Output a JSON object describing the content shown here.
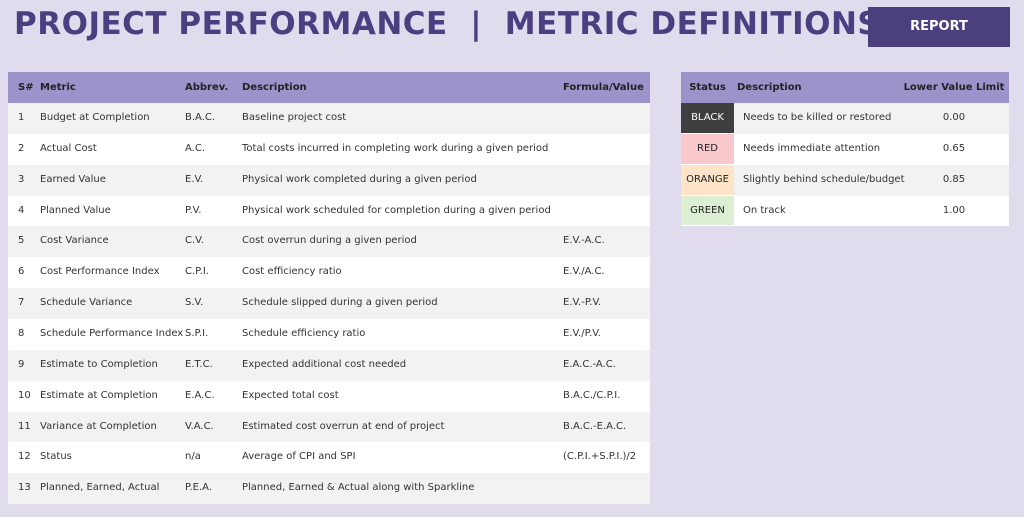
{
  "header": {
    "title": "PROJECT PERFORMANCE  |  METRIC DEFINITIONS",
    "button": "REPORT"
  },
  "metrics_table": {
    "columns": [
      "S#",
      "Metric",
      "Abbrev.",
      "Description",
      "Formula/Value"
    ],
    "rows": [
      [
        1,
        "Budget at Completion",
        "B.A.C.",
        "Baseline project cost"
      ],
      [
        2,
        "Actual Cost",
        "A.C.",
        "Total costs incurred in completing work during a given period"
      ],
      [
        3,
        "Earned Value",
        "E.V.",
        "Physical work completed during a given period"
      ],
      [
        4,
        "Planned Value",
        "P.V.",
        "Physical work scheduled for completion during a given period"
      ],
      [
        5,
        "Cost Variance",
        "C.V.",
        "Cost overrun during a given period",
        "E.V.-A.C."
      ],
      [
        6,
        "Cost Performance Index",
        "C.P.I.",
        "Cost efficiency ratio",
        "E.V./A.C."
      ],
      [
        7,
        "Schedule Variance",
        "S.V.",
        "Schedule slipped during a given period",
        "E.V.-P.V."
      ],
      [
        8,
        "Schedule Performance Index",
        "S.P.I.",
        "Schedule efficiency ratio",
        "E.V./P.V."
      ],
      [
        9,
        "Estimate to Completion",
        "E.T.C.",
        "Expected additional cost needed",
        "E.A.C.-A.C."
      ],
      [
        10,
        "Estimate at Completion",
        "E.A.C.",
        "Expected total cost",
        "B.A.C./C.P.I."
      ],
      [
        11,
        "Variance at Completion",
        "V.A.C.",
        "Estimated cost overrun at end of project",
        "B.A.C.-E.A.C."
      ],
      [
        12,
        "Status",
        "n/a",
        "Average of CPI and SPI",
        "(C.P.I.+S.P.I.)/2"
      ],
      [
        13,
        "Planned, Earned, Actual",
        "P.E.A.",
        "Planned, Earned & Actual along with Sparkline"
      ]
    ]
  },
  "status_table": {
    "columns": [
      "Status",
      "Description",
      "Lower Value Limit"
    ],
    "rows": [
      {
        "status": "BLACK",
        "description": "Needs to be killed or restored",
        "limit": "0.00",
        "color": "#3f3f3f",
        "text_color": "#ffffff"
      },
      {
        "status": "RED",
        "description": "Needs immediate attention",
        "limit": "0.65",
        "color": "#f8c8cc",
        "text_color": "#222222"
      },
      {
        "status": "ORANGE",
        "description": "Slightly behind schedule/budget",
        "limit": "0.85",
        "color": "#fde3c8",
        "text_color": "#222222"
      },
      {
        "status": "GREEN",
        "description": "On track",
        "limit": "1.00",
        "color": "#dcefd3",
        "text_color": "#222222"
      }
    ]
  }
}
